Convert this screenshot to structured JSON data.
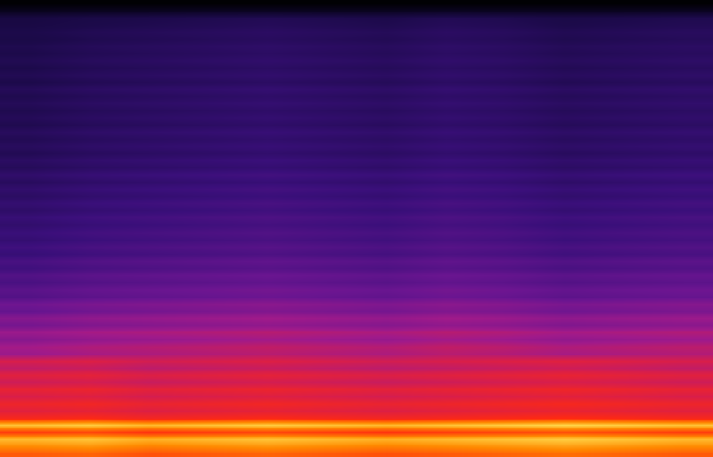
{
  "chart_data": {
    "type": "heatmap",
    "tick_labels": false,
    "zlim": [
      0,
      100
    ],
    "cells": [
      [
        85,
        86,
        84,
        85,
        86,
        85,
        84,
        85,
        86,
        87,
        86,
        85
      ],
      [
        90,
        91,
        89,
        90,
        91,
        90,
        89,
        90,
        91,
        92,
        91,
        90
      ],
      [
        95,
        96,
        94,
        95,
        96,
        95,
        94,
        95,
        96,
        97,
        96,
        95
      ],
      [
        82,
        83,
        81,
        82,
        83,
        82,
        81,
        82,
        83,
        84,
        83,
        82
      ],
      [
        96,
        97,
        95,
        96,
        97,
        96,
        95,
        96,
        97,
        98,
        97,
        96
      ],
      [
        78,
        79,
        77,
        78,
        79,
        78,
        77,
        78,
        79,
        80,
        79,
        78
      ],
      [
        72,
        73,
        71,
        72,
        73,
        72,
        71,
        72,
        73,
        74,
        73,
        72
      ],
      [
        76,
        77,
        75,
        76,
        77,
        76,
        75,
        76,
        77,
        78,
        77,
        76
      ],
      [
        70,
        71,
        69,
        70,
        71,
        70,
        69,
        70,
        71,
        72,
        71,
        70
      ],
      [
        74,
        75,
        73,
        74,
        75,
        74,
        73,
        74,
        75,
        76,
        75,
        74
      ],
      [
        68,
        69,
        67,
        68,
        69,
        68,
        67,
        68,
        69,
        70,
        69,
        68
      ],
      [
        72,
        73,
        71,
        72,
        73,
        72,
        71,
        72,
        73,
        74,
        73,
        72
      ],
      [
        66,
        67,
        65,
        66,
        67,
        66,
        65,
        66,
        67,
        68,
        67,
        66
      ],
      [
        70,
        71,
        69,
        70,
        71,
        70,
        69,
        70,
        71,
        72,
        71,
        70
      ],
      [
        59,
        61,
        62,
        63,
        64,
        63,
        62,
        64,
        63,
        61,
        62,
        63
      ],
      [
        61,
        63,
        64,
        65,
        66,
        65,
        64,
        66,
        65,
        63,
        64,
        65
      ],
      [
        55,
        57,
        58,
        59,
        60,
        59,
        58,
        60,
        59,
        57,
        58,
        59
      ],
      [
        59,
        61,
        62,
        63,
        64,
        63,
        62,
        64,
        63,
        61,
        62,
        63
      ],
      [
        52,
        54,
        55,
        56,
        57,
        56,
        55,
        57,
        56,
        54,
        55,
        56
      ],
      [
        55,
        57,
        58,
        59,
        60,
        59,
        58,
        60,
        59,
        57,
        58,
        59
      ],
      [
        49,
        51,
        52,
        53,
        54,
        53,
        52,
        54,
        53,
        51,
        52,
        53
      ],
      [
        51,
        53,
        54,
        55,
        56,
        55,
        54,
        56,
        55,
        53,
        54,
        55
      ],
      [
        45,
        47,
        48,
        49,
        50,
        49,
        48,
        50,
        49,
        47,
        48,
        49
      ],
      [
        47,
        49,
        50,
        51,
        52,
        51,
        50,
        52,
        51,
        49,
        50,
        51
      ],
      [
        43,
        45,
        46,
        47,
        48,
        47,
        46,
        48,
        47,
        45,
        46,
        47
      ],
      [
        45,
        47,
        48,
        49,
        50,
        49,
        48,
        50,
        49,
        47,
        48,
        49
      ],
      [
        41,
        43,
        44,
        45,
        46,
        45,
        44,
        46,
        45,
        43,
        44,
        45
      ],
      [
        43,
        45,
        46,
        47,
        48,
        47,
        46,
        48,
        47,
        45,
        46,
        47
      ],
      [
        39,
        41,
        42,
        43,
        44,
        43,
        42,
        44,
        43,
        41,
        42,
        43
      ],
      [
        41,
        43,
        44,
        45,
        46,
        45,
        44,
        46,
        45,
        43,
        44,
        45
      ],
      [
        38,
        40,
        41,
        42,
        43,
        42,
        41,
        43,
        42,
        40,
        41,
        42
      ],
      [
        40,
        42,
        43,
        44,
        45,
        44,
        43,
        45,
        44,
        42,
        43,
        44
      ],
      [
        37,
        39,
        40,
        41,
        42,
        41,
        40,
        42,
        41,
        39,
        40,
        41
      ],
      [
        39,
        41,
        42,
        43,
        44,
        43,
        42,
        44,
        43,
        41,
        42,
        43
      ],
      [
        36,
        38,
        39,
        40,
        41,
        40,
        39,
        41,
        40,
        38,
        39,
        40
      ],
      [
        38,
        40,
        41,
        42,
        43,
        42,
        41,
        43,
        42,
        40,
        41,
        42
      ],
      [
        35,
        37,
        38,
        39,
        40,
        39,
        38,
        40,
        39,
        37,
        38,
        39
      ],
      [
        37,
        39,
        40,
        41,
        42,
        41,
        40,
        42,
        41,
        39,
        40,
        41
      ],
      [
        34,
        36,
        37,
        38,
        39,
        38,
        37,
        39,
        38,
        36,
        37,
        38
      ],
      [
        37,
        39,
        40,
        41,
        42,
        41,
        40,
        42,
        41,
        39,
        40,
        41
      ],
      [
        33,
        35,
        36,
        37,
        38,
        37,
        36,
        38,
        37,
        35,
        36,
        37
      ],
      [
        35,
        37,
        38,
        39,
        40,
        39,
        38,
        40,
        39,
        37,
        38,
        39
      ],
      [
        32,
        34,
        35,
        36,
        37,
        36,
        35,
        37,
        36,
        34,
        35,
        36
      ],
      [
        34,
        36,
        37,
        38,
        39,
        38,
        37,
        39,
        38,
        36,
        37,
        38
      ],
      [
        32,
        34,
        35,
        36,
        37,
        36,
        35,
        37,
        36,
        34,
        35,
        36
      ],
      [
        34,
        36,
        37,
        38,
        39,
        38,
        37,
        39,
        38,
        36,
        37,
        38
      ],
      [
        31,
        33,
        34,
        35,
        36,
        35,
        34,
        36,
        35,
        33,
        34,
        35
      ],
      [
        33,
        35,
        36,
        37,
        38,
        37,
        36,
        38,
        37,
        35,
        36,
        37
      ],
      [
        31,
        33,
        34,
        35,
        36,
        35,
        34,
        36,
        35,
        33,
        34,
        35
      ],
      [
        33,
        35,
        36,
        37,
        38,
        37,
        36,
        38,
        37,
        35,
        36,
        37
      ],
      [
        31,
        33,
        34,
        35,
        36,
        35,
        34,
        36,
        35,
        33,
        34,
        35
      ],
      [
        33,
        35,
        36,
        37,
        38,
        37,
        36,
        38,
        37,
        35,
        36,
        37
      ],
      [
        30,
        32,
        33,
        34,
        35,
        34,
        33,
        35,
        34,
        32,
        33,
        34
      ],
      [
        32,
        34,
        35,
        36,
        37,
        36,
        35,
        37,
        36,
        34,
        35,
        36
      ],
      [
        30,
        32,
        33,
        34,
        35,
        34,
        33,
        35,
        34,
        32,
        33,
        34
      ],
      [
        32,
        34,
        35,
        36,
        37,
        36,
        35,
        37,
        36,
        34,
        35,
        36
      ],
      [
        30,
        32,
        33,
        34,
        35,
        34,
        33,
        35,
        34,
        32,
        33,
        34
      ],
      [
        31,
        33,
        34,
        35,
        36,
        35,
        34,
        36,
        35,
        33,
        34,
        35
      ],
      [
        29,
        31,
        32,
        33,
        34,
        33,
        32,
        34,
        33,
        31,
        32,
        33
      ],
      [
        30,
        32,
        33,
        34,
        35,
        34,
        33,
        35,
        34,
        32,
        33,
        34
      ],
      [
        28,
        30,
        31,
        32,
        33,
        32,
        31,
        33,
        32,
        30,
        31,
        32
      ],
      [
        27,
        29,
        30,
        31,
        32,
        31,
        30,
        32,
        31,
        29,
        30,
        31
      ],
      [
        14,
        15,
        15,
        16,
        16,
        15,
        15,
        16,
        15,
        15,
        15,
        16
      ],
      [
        2,
        2,
        2,
        2,
        2,
        2,
        2,
        2,
        2,
        2,
        2,
        2
      ]
    ]
  }
}
